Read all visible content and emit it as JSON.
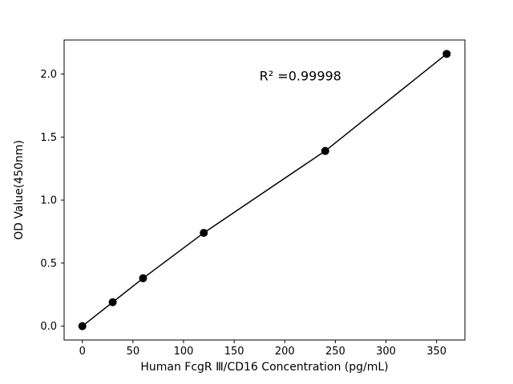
{
  "chart_data": {
    "type": "scatter",
    "title": "",
    "xlabel": "Human FcgR Ⅲ/CD16 Concentration (pg/mL)",
    "ylabel": "OD Value(450nm)",
    "annotation": "R² =0.99998",
    "annotation_xy": [
      175,
      1.95
    ],
    "x": [
      0,
      30,
      60,
      120,
      240,
      360
    ],
    "y": [
      0.0,
      0.19,
      0.38,
      0.74,
      1.39,
      2.16
    ],
    "line": true,
    "marker": "circle",
    "marker_radius": 5,
    "xlim": [
      -18,
      378
    ],
    "ylim": [
      -0.11,
      2.27
    ],
    "xticks": [
      0,
      50,
      100,
      150,
      200,
      250,
      300,
      350
    ],
    "xtick_labels": [
      "0",
      "50",
      "100",
      "150",
      "200",
      "250",
      "300",
      "350"
    ],
    "yticks": [
      0.0,
      0.5,
      1.0,
      1.5,
      2.0
    ],
    "ytick_labels": [
      "0.0",
      "0.5",
      "1.0",
      "1.5",
      "2.0"
    ],
    "grid": false,
    "legend": null,
    "colors": {
      "marker": "#000000",
      "line": "#000000",
      "frame": "#000000",
      "background": "#ffffff"
    }
  }
}
